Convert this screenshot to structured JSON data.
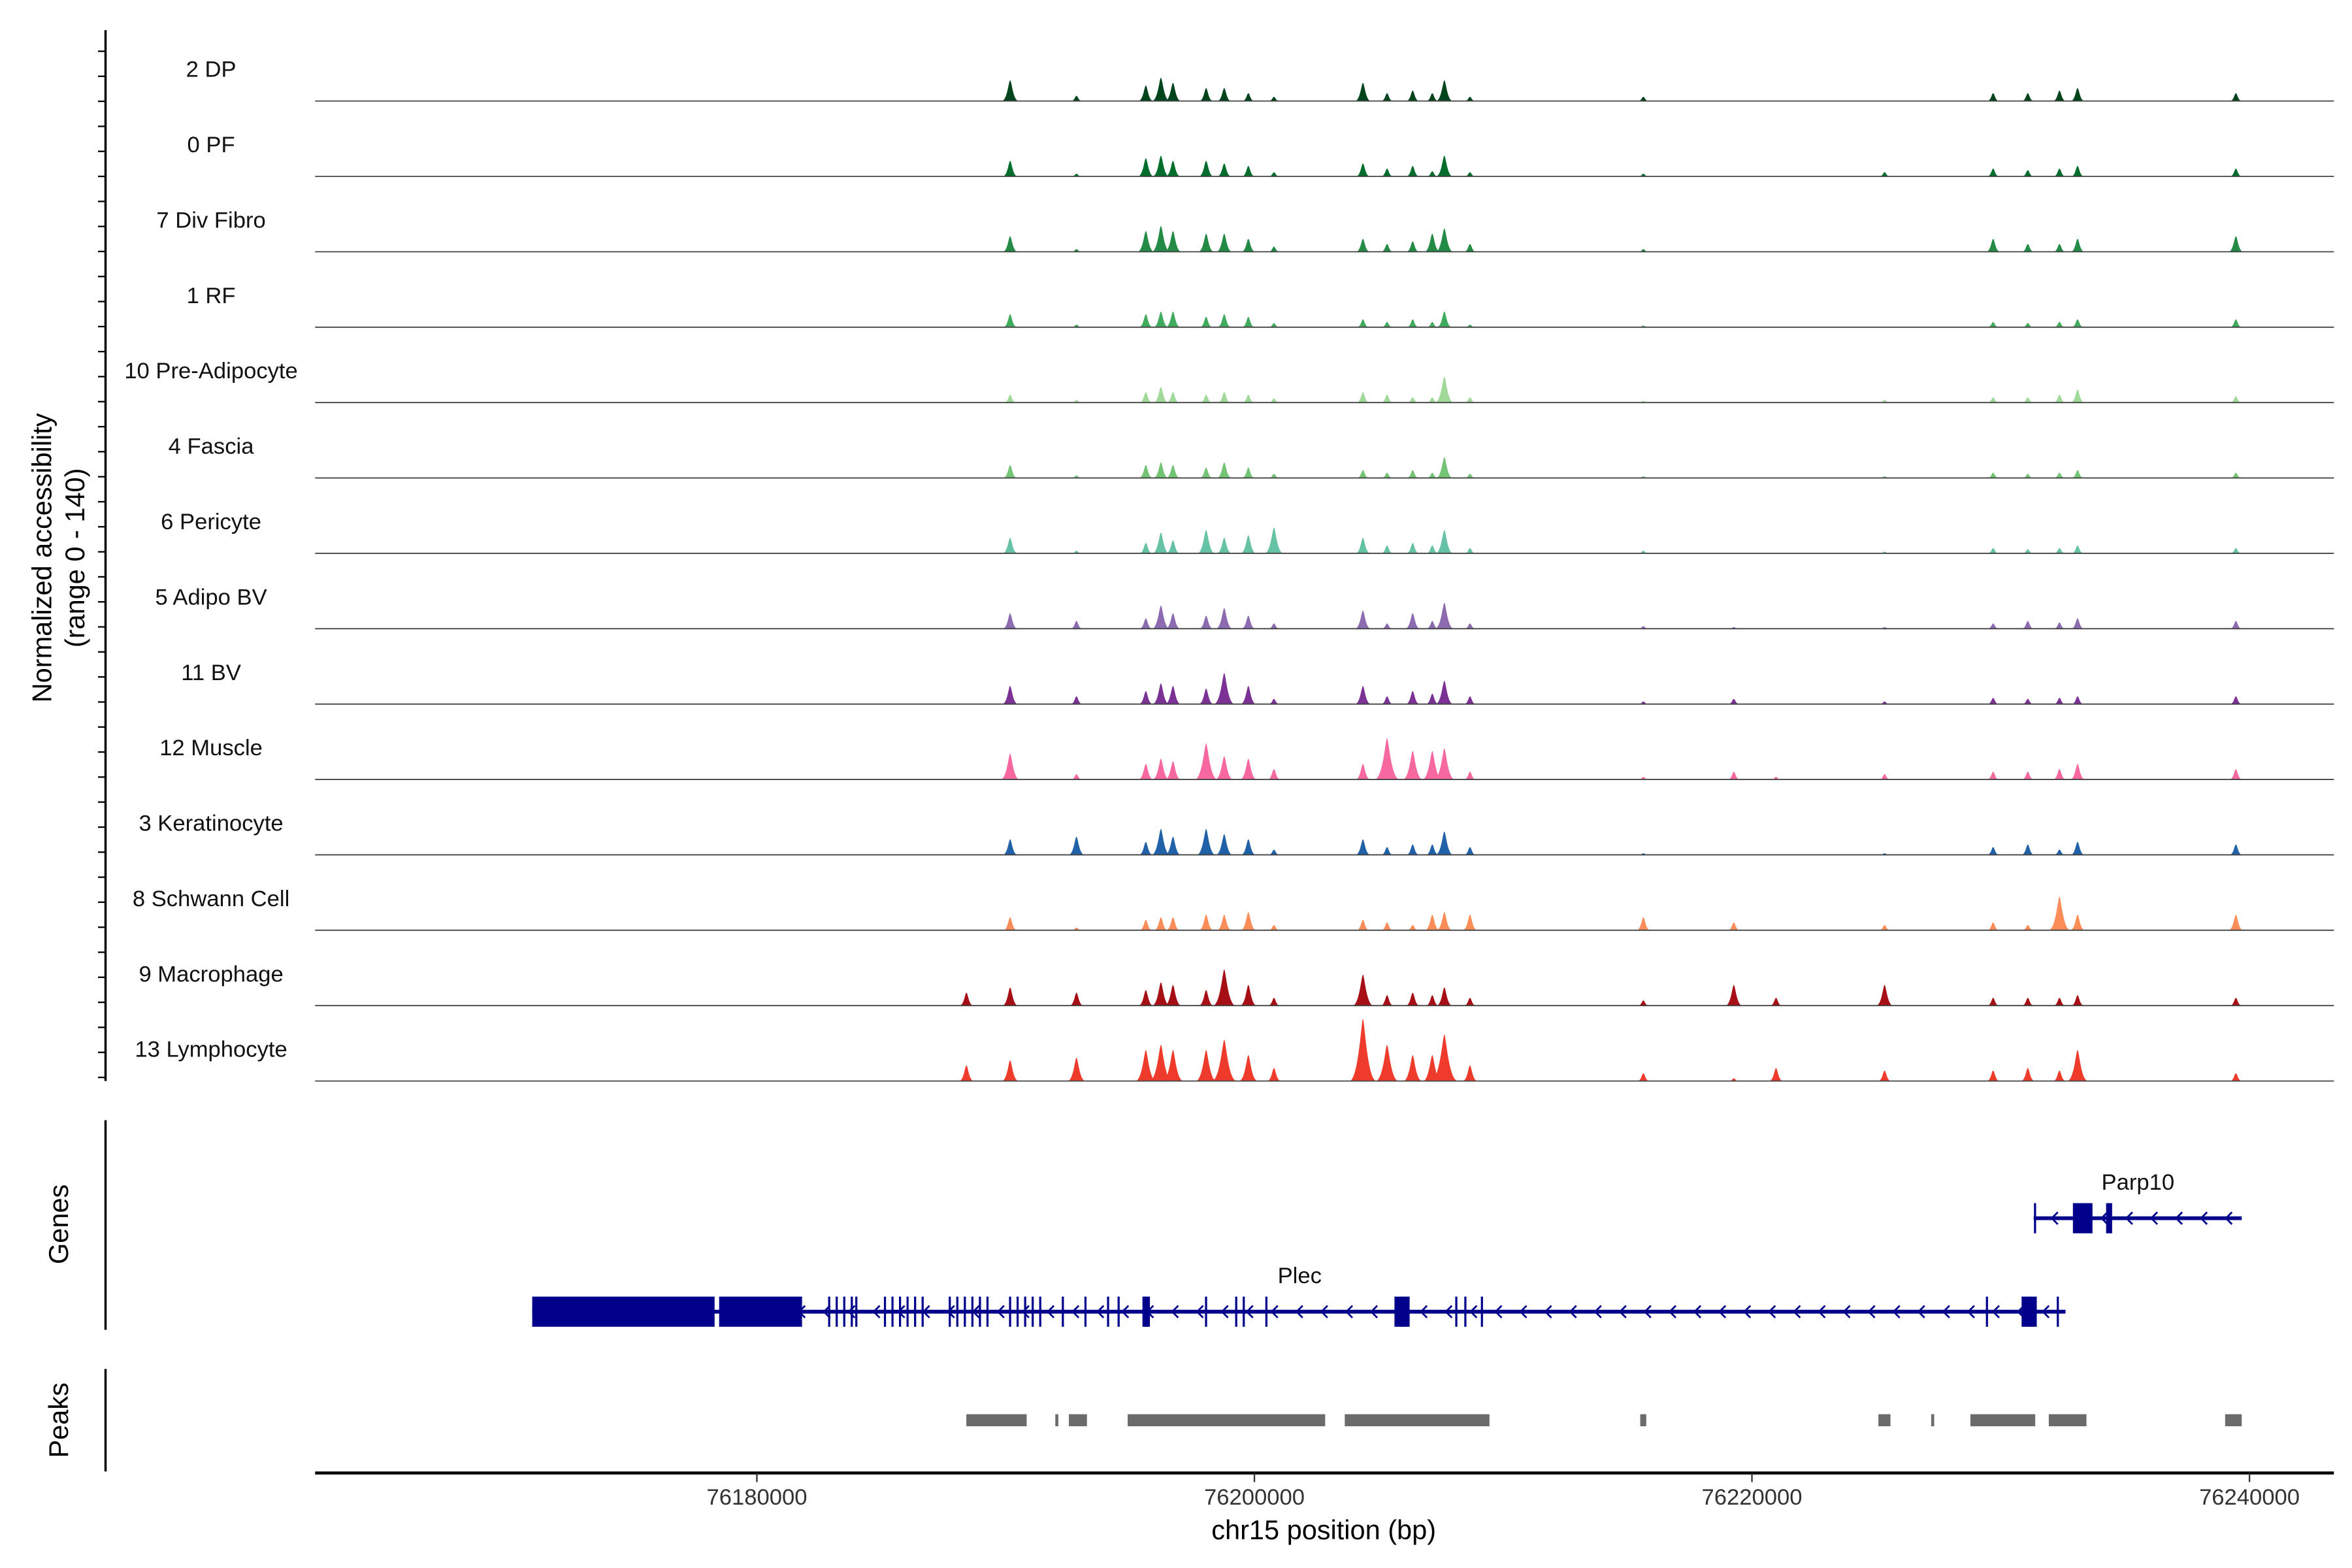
{
  "chart_data": {
    "type": "area",
    "title": "",
    "ylabel": "Normalized accessibility",
    "ylabel_range": "(range 0 - 140)",
    "ylim": [
      0,
      140
    ],
    "xlabel": "chr15 position (bp)",
    "xlim": [
      76162242,
      76243394
    ],
    "x_ticks": [
      76180000,
      76200000,
      76220000,
      76240000
    ],
    "x_tick_labels": [
      "76180000",
      "76200000",
      "76220000",
      "76240000"
    ],
    "peak_positions": [
      76188424,
      76190181,
      76192848,
      76195636,
      76196242,
      76196727,
      76198060,
      76198787,
      76199757,
      76200787,
      76204363,
      76205333,
      76206363,
      76207151,
      76207636,
      76208666,
      76215636,
      76219272,
      76220969,
      76225333,
      76229696,
      76231090,
      76232363,
      76233090,
      76239454
    ],
    "series": [
      {
        "name": "2 DP",
        "color": "#00441b",
        "values": [
          0,
          40,
          10,
          30,
          45,
          35,
          25,
          25,
          15,
          8,
          35,
          15,
          20,
          15,
          40,
          8,
          8,
          0,
          0,
          0,
          15,
          15,
          20,
          25,
          15
        ]
      },
      {
        "name": "0 PF",
        "color": "#006d2c",
        "values": [
          0,
          30,
          5,
          35,
          40,
          30,
          30,
          25,
          20,
          8,
          25,
          15,
          20,
          10,
          40,
          8,
          5,
          0,
          0,
          8,
          15,
          12,
          15,
          20,
          15
        ]
      },
      {
        "name": "7 Div Fibro",
        "color": "#238b45",
        "values": [
          0,
          30,
          5,
          40,
          50,
          40,
          35,
          35,
          25,
          10,
          25,
          15,
          20,
          35,
          45,
          15,
          5,
          0,
          0,
          0,
          25,
          15,
          15,
          25,
          30
        ]
      },
      {
        "name": "1 RF",
        "color": "#41ab5d",
        "values": [
          0,
          25,
          5,
          25,
          30,
          30,
          20,
          25,
          20,
          8,
          15,
          10,
          15,
          10,
          30,
          5,
          3,
          0,
          0,
          0,
          10,
          8,
          10,
          15,
          15
        ]
      },
      {
        "name": "10 Pre-Adipocyte",
        "color": "#a1d99b",
        "values": [
          0,
          15,
          5,
          20,
          30,
          20,
          15,
          20,
          15,
          8,
          20,
          15,
          10,
          10,
          50,
          10,
          3,
          0,
          0,
          5,
          10,
          10,
          15,
          25,
          12
        ]
      },
      {
        "name": "4 Fascia",
        "color": "#74c476",
        "values": [
          0,
          25,
          5,
          25,
          30,
          25,
          20,
          30,
          20,
          8,
          15,
          10,
          15,
          10,
          40,
          8,
          3,
          0,
          0,
          3,
          10,
          8,
          10,
          15,
          10
        ]
      },
      {
        "name": "6 Pericyte",
        "color": "#66c2a4",
        "values": [
          0,
          30,
          5,
          20,
          40,
          25,
          45,
          30,
          35,
          50,
          30,
          15,
          20,
          15,
          45,
          10,
          5,
          0,
          0,
          3,
          10,
          8,
          10,
          15,
          10
        ]
      },
      {
        "name": "5 Adipo BV",
        "color": "#8c6bb1",
        "values": [
          0,
          30,
          15,
          20,
          45,
          30,
          25,
          40,
          25,
          10,
          35,
          10,
          30,
          15,
          50,
          10,
          5,
          3,
          0,
          3,
          10,
          15,
          12,
          20,
          15
        ]
      },
      {
        "name": "11 BV",
        "color": "#7b3294",
        "values": [
          0,
          35,
          15,
          25,
          40,
          35,
          30,
          60,
          35,
          10,
          35,
          15,
          25,
          20,
          45,
          15,
          5,
          10,
          0,
          5,
          12,
          10,
          12,
          15,
          15
        ]
      },
      {
        "name": "12 Muscle",
        "color": "#f768a1",
        "values": [
          0,
          50,
          10,
          30,
          40,
          35,
          70,
          45,
          40,
          20,
          30,
          80,
          55,
          55,
          60,
          15,
          5,
          15,
          5,
          10,
          15,
          15,
          20,
          30,
          20
        ]
      },
      {
        "name": "3 Keratinocyte",
        "color": "#2161a8",
        "values": [
          0,
          30,
          35,
          25,
          50,
          35,
          50,
          40,
          30,
          10,
          30,
          15,
          20,
          20,
          45,
          15,
          3,
          0,
          0,
          3,
          15,
          20,
          10,
          25,
          20
        ]
      },
      {
        "name": "8 Schwann Cell",
        "color": "#fc8d59",
        "values": [
          0,
          25,
          5,
          20,
          25,
          25,
          30,
          30,
          35,
          10,
          20,
          15,
          10,
          30,
          35,
          30,
          25,
          15,
          0,
          10,
          15,
          10,
          65,
          30,
          30
        ]
      },
      {
        "name": "9 Macrophage",
        "color": "#a50f15",
        "values": [
          25,
          35,
          25,
          30,
          45,
          40,
          30,
          70,
          40,
          15,
          60,
          20,
          25,
          20,
          35,
          15,
          10,
          40,
          15,
          40,
          15,
          15,
          15,
          20,
          15
        ]
      },
      {
        "name": "13 Lymphocyte",
        "color": "#ef3b2c",
        "values": [
          30,
          40,
          45,
          60,
          70,
          60,
          60,
          80,
          50,
          25,
          120,
          70,
          50,
          50,
          90,
          30,
          15,
          5,
          25,
          20,
          20,
          25,
          20,
          60,
          15
        ]
      }
    ],
    "genes_panel": {
      "label": "Genes",
      "color": "#00008b",
      "genes": [
        {
          "name": "Plec",
          "strand": "-",
          "start": 76170969,
          "end": 76232606,
          "utr_blocks": [
            [
              76170969,
              76178301
            ],
            [
              76178483,
              76181816
            ]
          ],
          "exons": [
            76182907,
            76183210,
            76183513,
            76183816,
            76183998,
            76185149,
            76185452,
            76185755,
            76186058,
            76186361,
            76186664,
            76187755,
            76188058,
            76188361,
            76188664,
            76188967,
            76189270,
            76190179,
            76190482,
            76190785,
            76191088,
            76191391,
            76192300,
            76193209,
            76194118,
            76194542,
            76195633,
            76198057,
            76199269,
            76199572,
            76200481,
            76205935,
            76208116,
            76208480,
            76209146,
            76229447,
            76231144,
            76232296
          ],
          "wide_exons": [
            [
              76195500,
              76195800
            ],
            [
              76205630,
              76206240
            ],
            [
              76230840,
              76231450
            ]
          ]
        },
        {
          "name": "Parp10",
          "strand": "-",
          "start": 76231326,
          "end": 76239689,
          "utr_blocks": [
            [
              76232902,
              76233689
            ],
            [
              76234237,
              76234479
            ]
          ],
          "exons": [
            76231380
          ],
          "wide_exons": []
        }
      ]
    },
    "peaks_panel": {
      "label": "Peaks",
      "color": "#6b6b6b",
      "regions": [
        [
          76188421,
          76190845
        ],
        [
          76191997,
          76192118
        ],
        [
          76192542,
          76193269
        ],
        [
          76194905,
          76202844
        ],
        [
          76203632,
          76209449
        ],
        [
          76215509,
          76215752
        ],
        [
          76225084,
          76225569
        ],
        [
          76227205,
          76227326
        ],
        [
          76228781,
          76231387
        ],
        [
          76231932,
          76233447
        ],
        [
          76239022,
          76239689
        ]
      ]
    }
  }
}
